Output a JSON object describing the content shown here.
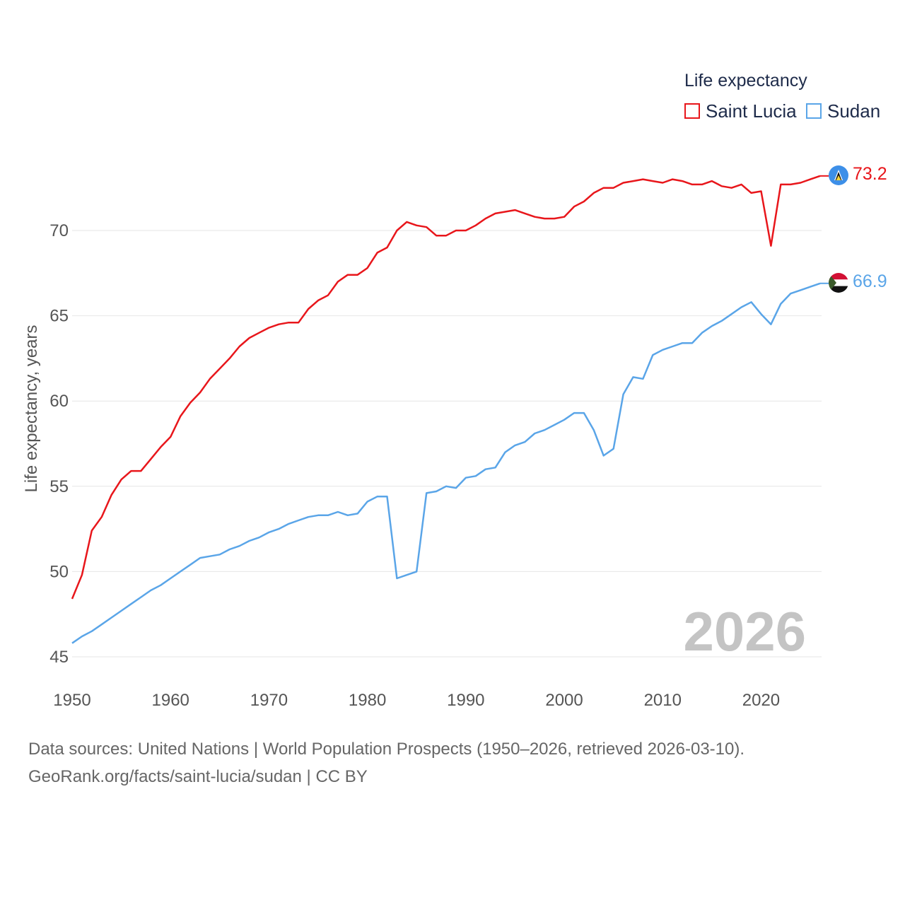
{
  "chart_data": {
    "type": "line",
    "title": "Life expectancy",
    "ylabel": "Life expectancy, years",
    "xlabel": "",
    "xlim": [
      1950,
      2026
    ],
    "ylim": [
      45,
      73.5
    ],
    "x_ticks": [
      1950,
      1960,
      1970,
      1980,
      1990,
      2000,
      2010,
      2020
    ],
    "y_ticks": [
      45,
      50,
      55,
      60,
      65,
      70
    ],
    "legend_position": "top-right",
    "watermark_year": "2026",
    "x": [
      1950,
      1951,
      1952,
      1953,
      1954,
      1955,
      1956,
      1957,
      1958,
      1959,
      1960,
      1961,
      1962,
      1963,
      1964,
      1965,
      1966,
      1967,
      1968,
      1969,
      1970,
      1971,
      1972,
      1973,
      1974,
      1975,
      1976,
      1977,
      1978,
      1979,
      1980,
      1981,
      1982,
      1983,
      1984,
      1985,
      1986,
      1987,
      1988,
      1989,
      1990,
      1991,
      1992,
      1993,
      1994,
      1995,
      1996,
      1997,
      1998,
      1999,
      2000,
      2001,
      2002,
      2003,
      2004,
      2005,
      2006,
      2007,
      2008,
      2009,
      2010,
      2011,
      2012,
      2013,
      2014,
      2015,
      2016,
      2017,
      2018,
      2019,
      2020,
      2021,
      2022,
      2023,
      2024,
      2025,
      2026
    ],
    "series": [
      {
        "name": "Saint Lucia",
        "color": "#e8161b",
        "end_label": "73.2",
        "values": [
          48.4,
          49.8,
          52.4,
          53.2,
          54.5,
          55.4,
          55.9,
          55.9,
          56.6,
          57.3,
          57.9,
          59.1,
          59.9,
          60.5,
          61.3,
          61.9,
          62.5,
          63.2,
          63.7,
          64.0,
          64.3,
          64.5,
          64.6,
          64.6,
          65.4,
          65.9,
          66.2,
          67.0,
          67.4,
          67.4,
          67.8,
          68.7,
          69.0,
          70.0,
          70.5,
          70.3,
          70.2,
          69.7,
          69.7,
          70.0,
          70.0,
          70.3,
          70.7,
          71.0,
          71.1,
          71.2,
          71.0,
          70.8,
          70.7,
          70.7,
          70.8,
          71.4,
          71.7,
          72.2,
          72.5,
          72.5,
          72.8,
          72.9,
          73.0,
          72.9,
          72.8,
          73.0,
          72.9,
          72.7,
          72.7,
          72.9,
          72.6,
          72.5,
          72.7,
          72.2,
          72.3,
          69.1,
          72.7,
          72.7,
          72.8,
          73.0,
          73.2
        ]
      },
      {
        "name": "Sudan",
        "color": "#5aa5e8",
        "end_label": "66.9",
        "values": [
          45.8,
          46.2,
          46.5,
          46.9,
          47.3,
          47.7,
          48.1,
          48.5,
          48.9,
          49.2,
          49.6,
          50.0,
          50.4,
          50.8,
          50.9,
          51.0,
          51.3,
          51.5,
          51.8,
          52.0,
          52.3,
          52.5,
          52.8,
          53.0,
          53.2,
          53.3,
          53.3,
          53.5,
          53.3,
          53.4,
          54.1,
          54.4,
          54.4,
          49.6,
          49.8,
          50.0,
          54.6,
          54.7,
          55.0,
          54.9,
          55.5,
          55.6,
          56.0,
          56.1,
          57.0,
          57.4,
          57.6,
          58.1,
          58.3,
          58.6,
          58.9,
          59.3,
          59.3,
          58.3,
          56.8,
          57.2,
          60.4,
          61.4,
          61.3,
          62.7,
          63.0,
          63.2,
          63.4,
          63.4,
          64.0,
          64.4,
          64.7,
          65.1,
          65.5,
          65.8,
          65.1,
          64.5,
          65.7,
          66.3,
          66.5,
          66.7,
          66.9
        ]
      }
    ]
  },
  "legend": {
    "title": "Life expectancy",
    "items": [
      "Saint Lucia",
      "Sudan"
    ]
  },
  "footer": {
    "line1": "Data sources: United Nations | World Population Prospects (1950–2026, retrieved 2026-03-10).",
    "line2": "GeoRank.org/facts/saint-lucia/sudan | CC BY"
  },
  "flags": {
    "saint_lucia": {
      "icon": "saint-lucia-flag-icon",
      "bg": "#3d8fe8",
      "triangle_outer": "#f7d43a",
      "triangle_inner": "#111111"
    },
    "sudan": {
      "icon": "sudan-flag-icon",
      "red": "#d21034",
      "white": "#ffffff",
      "black": "#111111",
      "green": "#3a5a2a"
    }
  }
}
